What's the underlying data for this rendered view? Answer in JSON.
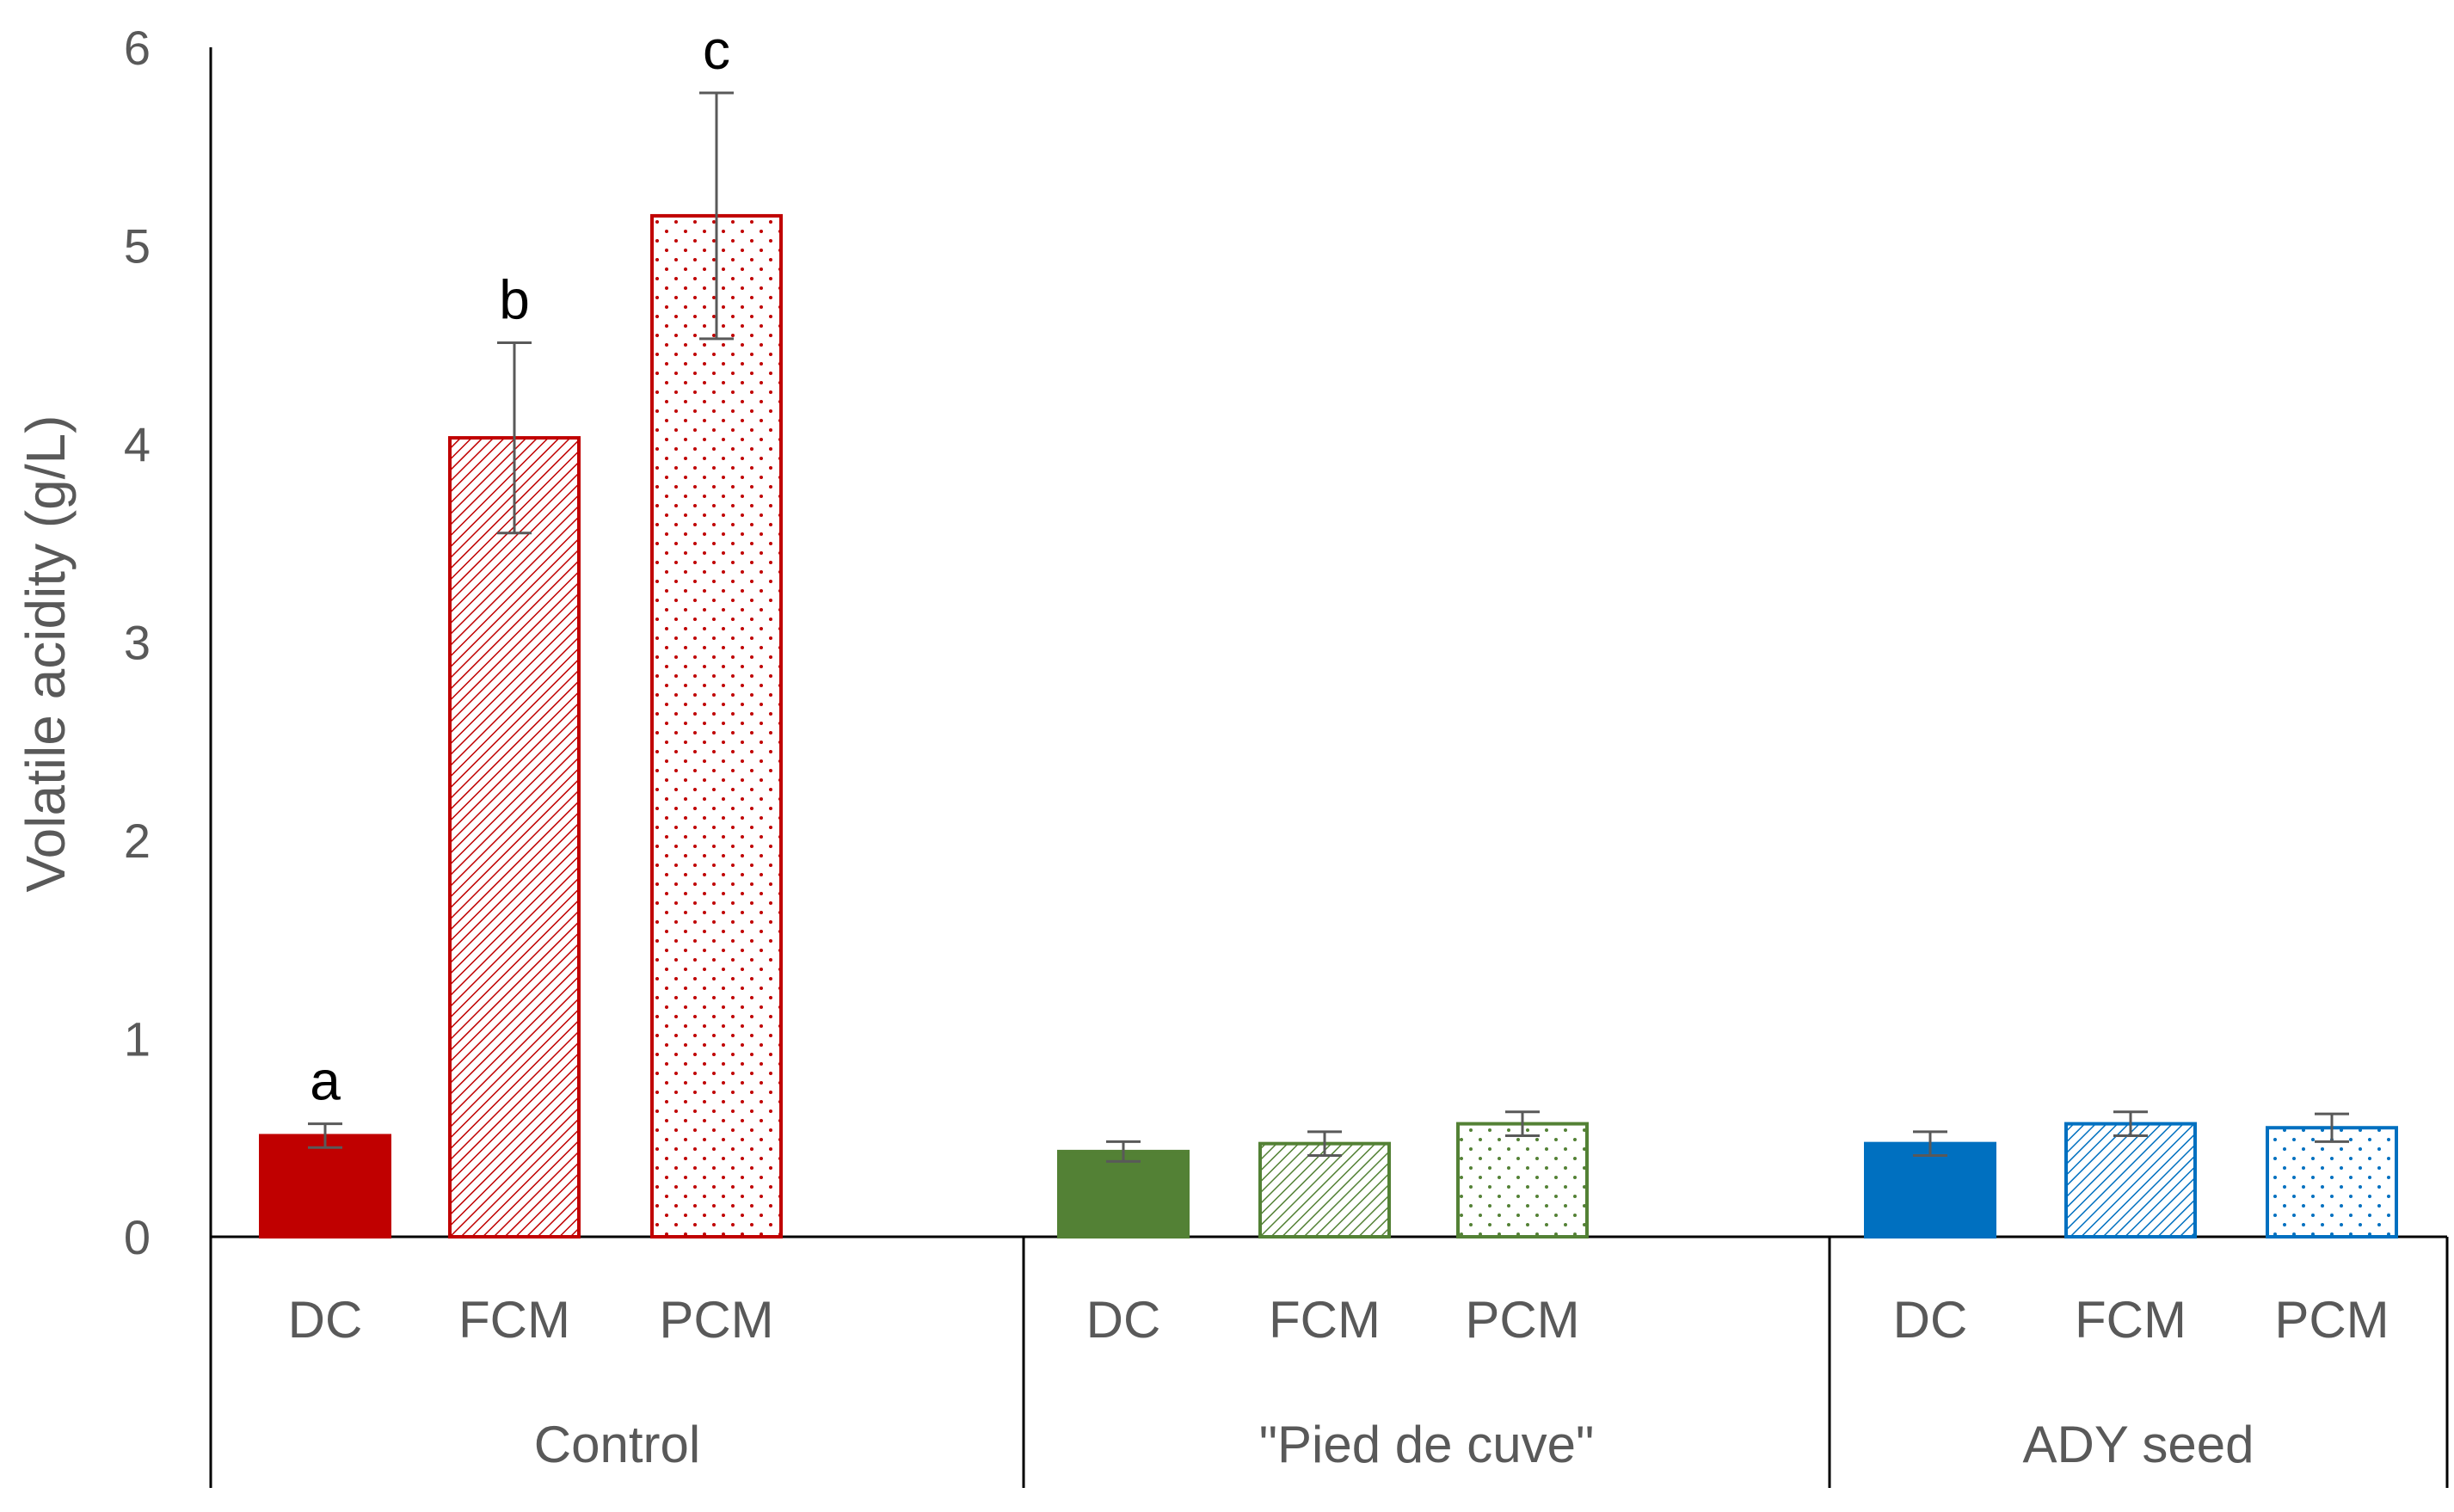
{
  "chart_data": {
    "type": "bar",
    "ylabel": "Volatile acidity (g/L)",
    "ylim": [
      0,
      6
    ],
    "yticks": [
      0,
      1,
      2,
      3,
      4,
      5,
      6
    ],
    "grid": false,
    "legend": "none",
    "groups": [
      {
        "name": "Control",
        "color": "#C00000",
        "bars": [
          {
            "category": "DC",
            "pattern": "solid",
            "value": 0.51,
            "error": 0.06,
            "significance": "a"
          },
          {
            "category": "FCM",
            "pattern": "hatch",
            "value": 4.03,
            "error": 0.48,
            "significance": "b"
          },
          {
            "category": "PCM",
            "pattern": "dots",
            "value": 5.15,
            "error": 0.62,
            "significance": "c"
          }
        ]
      },
      {
        "name": "\"Pied de cuve\"",
        "color": "#538135",
        "bars": [
          {
            "category": "DC",
            "pattern": "solid",
            "value": 0.43,
            "error": 0.05,
            "significance": ""
          },
          {
            "category": "FCM",
            "pattern": "hatch",
            "value": 0.47,
            "error": 0.06,
            "significance": ""
          },
          {
            "category": "PCM",
            "pattern": "dots",
            "value": 0.57,
            "error": 0.06,
            "significance": ""
          }
        ]
      },
      {
        "name": "ADY seed",
        "color": "#0070C0",
        "bars": [
          {
            "category": "DC",
            "pattern": "solid",
            "value": 0.47,
            "error": 0.06,
            "significance": ""
          },
          {
            "category": "FCM",
            "pattern": "hatch",
            "value": 0.57,
            "error": 0.06,
            "significance": ""
          },
          {
            "category": "PCM",
            "pattern": "dots",
            "value": 0.55,
            "error": 0.07,
            "significance": ""
          }
        ]
      }
    ]
  }
}
